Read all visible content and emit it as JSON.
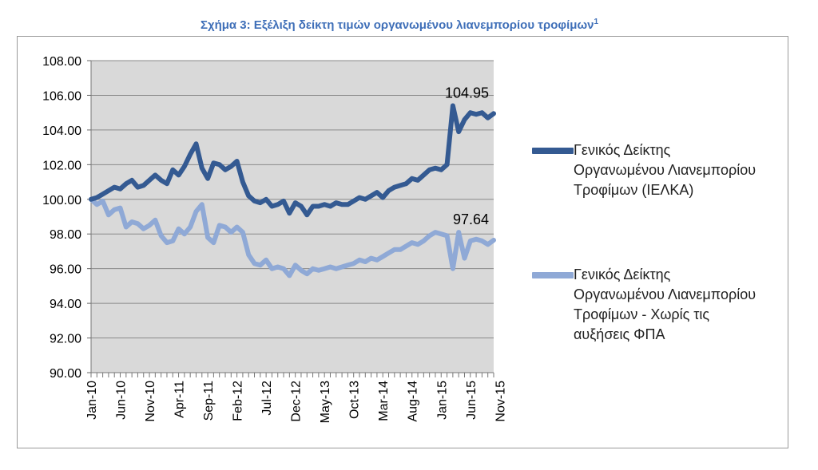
{
  "title": "Σχήμα 3: Εξέλιξη δείκτη τιμών οργανωμένου λιανεμπορίου τροφίμων",
  "title_superscript": "1",
  "colors": {
    "series1": "#345A92",
    "series2": "#8FA9D6",
    "plot_bg": "#D9D9D9",
    "title": "#3F6FB8"
  },
  "chart_data": {
    "type": "line",
    "ylim": [
      90,
      108
    ],
    "yticks": [
      "90.00",
      "92.00",
      "94.00",
      "96.00",
      "98.00",
      "100.00",
      "102.00",
      "104.00",
      "106.00",
      "108.00"
    ],
    "grid": true,
    "legend_position": "right",
    "x_tick_labels": [
      "Jan-10",
      "Jun-10",
      "Nov-10",
      "Apr-11",
      "Sep-11",
      "Feb-12",
      "Jul-12",
      "Dec-12",
      "May-13",
      "Oct-13",
      "Mar-14",
      "Aug-14",
      "Jan-15",
      "Jun-15",
      "Nov-15"
    ],
    "annotations": [
      {
        "text": "104.95",
        "series": 0
      },
      {
        "text": "97.64",
        "series": 1
      }
    ],
    "series": [
      {
        "name": "Γενικός Δείκτης Οργανωμένου Λιανεμπορίου Τροφίμων (ΙΕΛΚΑ)",
        "values": [
          100.0,
          100.1,
          100.3,
          100.5,
          100.7,
          100.6,
          100.9,
          101.1,
          100.7,
          100.8,
          101.1,
          101.4,
          101.1,
          100.9,
          101.7,
          101.4,
          101.9,
          102.6,
          103.2,
          101.8,
          101.2,
          102.1,
          102.0,
          101.7,
          101.9,
          102.2,
          101.0,
          100.2,
          99.9,
          99.8,
          100.0,
          99.6,
          99.7,
          99.9,
          99.2,
          99.8,
          99.6,
          99.1,
          99.6,
          99.6,
          99.7,
          99.6,
          99.8,
          99.7,
          99.7,
          99.9,
          100.1,
          100.0,
          100.2,
          100.4,
          100.1,
          100.5,
          100.7,
          100.8,
          100.9,
          101.2,
          101.1,
          101.4,
          101.7,
          101.8,
          101.7,
          102.0,
          105.4,
          103.9,
          104.6,
          105.0,
          104.9,
          105.0,
          104.7,
          104.95
        ]
      },
      {
        "name": "Γενικός Δείκτης Οργανωμένου Λιανεμπορίου Τροφίμων - Χωρίς τις αυξήσεις ΦΠΑ",
        "values": [
          100.0,
          99.7,
          99.9,
          99.1,
          99.4,
          99.5,
          98.4,
          98.7,
          98.6,
          98.3,
          98.5,
          98.8,
          97.9,
          97.5,
          97.6,
          98.3,
          98.0,
          98.4,
          99.3,
          99.7,
          97.8,
          97.5,
          98.5,
          98.4,
          98.1,
          98.4,
          98.1,
          96.8,
          96.3,
          96.2,
          96.5,
          96.0,
          96.1,
          96.0,
          95.6,
          96.2,
          95.9,
          95.7,
          96.0,
          95.9,
          96.0,
          96.1,
          96.0,
          96.1,
          96.2,
          96.3,
          96.5,
          96.4,
          96.6,
          96.5,
          96.7,
          96.9,
          97.1,
          97.1,
          97.3,
          97.5,
          97.4,
          97.6,
          97.9,
          98.1,
          98.0,
          97.9,
          96.0,
          98.1,
          96.6,
          97.6,
          97.7,
          97.6,
          97.4,
          97.64
        ]
      }
    ]
  }
}
